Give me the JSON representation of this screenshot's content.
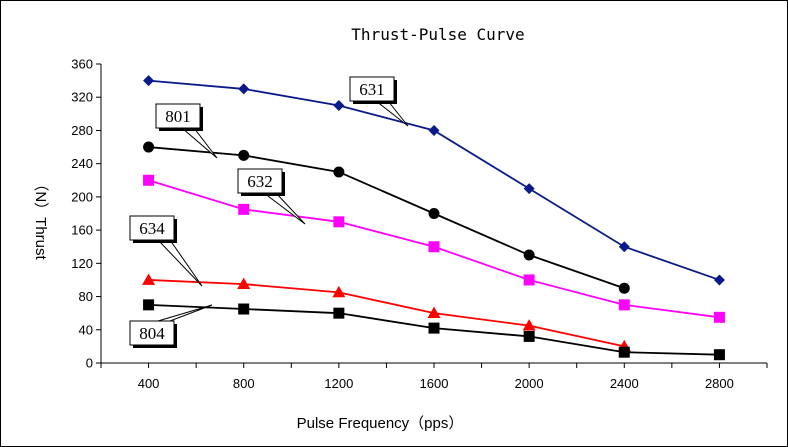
{
  "chart_data": {
    "type": "line",
    "title": "Thrust-Pulse Curve",
    "xlabel": "Pulse Frequency（pps）",
    "ylabel": "（N）Thrust",
    "x": [
      400,
      800,
      1200,
      1600,
      2000,
      2400,
      2800
    ],
    "xlim": [
      200,
      3000
    ],
    "ylim": [
      0,
      360
    ],
    "xticks": [
      400,
      800,
      1200,
      1600,
      2000,
      2400,
      2800
    ],
    "yticks": [
      0,
      40,
      80,
      120,
      160,
      200,
      240,
      280,
      320,
      360
    ],
    "grid": false,
    "legend": "none",
    "series": [
      {
        "name": "631",
        "color": "#0a1a8a",
        "marker": "diamond",
        "x": [
          400,
          800,
          1200,
          1600,
          2000,
          2400,
          2800
        ],
        "values": [
          340,
          330,
          310,
          280,
          210,
          140,
          100
        ]
      },
      {
        "name": "801",
        "color": "#000000",
        "marker": "circle",
        "x": [
          400,
          800,
          1200,
          1600,
          2000,
          2400
        ],
        "values": [
          260,
          250,
          230,
          180,
          130,
          90
        ]
      },
      {
        "name": "632",
        "color": "#ff00ff",
        "marker": "square",
        "x": [
          400,
          800,
          1200,
          1600,
          2000,
          2400,
          2800
        ],
        "values": [
          220,
          185,
          170,
          140,
          100,
          70,
          55
        ]
      },
      {
        "name": "634",
        "color": "#ff0000",
        "marker": "triangle",
        "x": [
          400,
          800,
          1200,
          1600,
          2000,
          2400
        ],
        "values": [
          100,
          95,
          85,
          60,
          45,
          20
        ]
      },
      {
        "name": "804",
        "color": "#000000",
        "marker": "square",
        "x": [
          400,
          800,
          1200,
          1600,
          2000,
          2400,
          2800
        ],
        "values": [
          70,
          65,
          60,
          42,
          32,
          13,
          10
        ]
      }
    ],
    "callouts": [
      {
        "label": "631",
        "series": "631"
      },
      {
        "label": "801",
        "series": "801"
      },
      {
        "label": "632",
        "series": "632"
      },
      {
        "label": "634",
        "series": "634"
      },
      {
        "label": "804",
        "series": "804"
      }
    ]
  }
}
